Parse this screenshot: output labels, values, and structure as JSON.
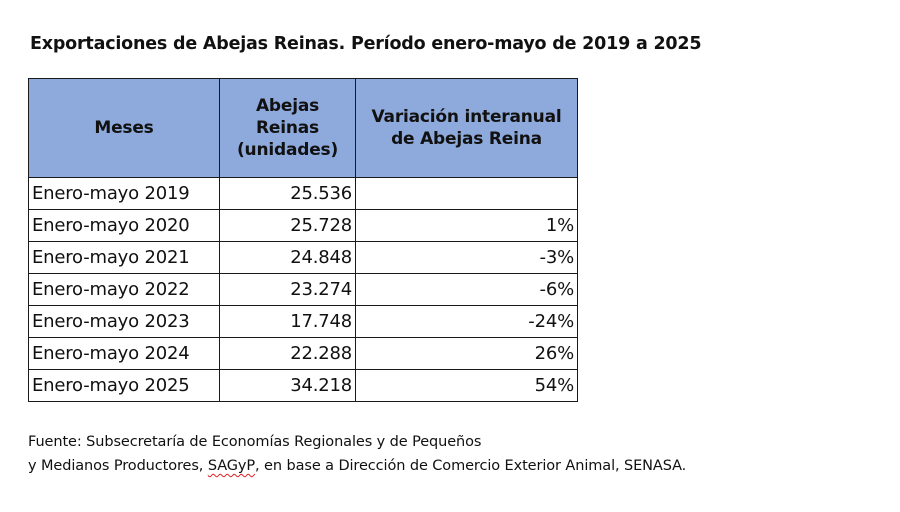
{
  "title": "Exportaciones de Abejas Reinas. Período enero-mayo de 2019 a 2025",
  "table": {
    "headers": {
      "meses": "Meses",
      "abejas_line1": "Abejas",
      "abejas_line2": "Reinas",
      "abejas_line3": "(unidades)",
      "variacion_line1": "Variación interanual",
      "variacion_line2": "de Abejas Reina"
    },
    "header_color": "#8ea9db",
    "rows": [
      {
        "mes": "Enero-mayo 2019",
        "abejas": "25.536",
        "variacion": ""
      },
      {
        "mes": "Enero-mayo 2020",
        "abejas": "25.728",
        "variacion": "1%"
      },
      {
        "mes": "Enero-mayo 2021",
        "abejas": "24.848",
        "variacion": "-3%"
      },
      {
        "mes": "Enero-mayo 2022",
        "abejas": "23.274",
        "variacion": "-6%"
      },
      {
        "mes": "Enero-mayo 2023",
        "abejas": "17.748",
        "variacion": "-24%"
      },
      {
        "mes": "Enero-mayo 2024",
        "abejas": "22.288",
        "variacion": "26%"
      },
      {
        "mes": "Enero-mayo 2025",
        "abejas": "34.218",
        "variacion": "54%"
      }
    ]
  },
  "source": {
    "line1": "Fuente: Subsecretaría de Economías Regionales y de Pequeños",
    "line2_before": "y Medianos Productores, ",
    "line2_marked": "SAGyP",
    "line2_after": ", en base a Dirección de Comercio Exterior Animal, SENASA."
  }
}
